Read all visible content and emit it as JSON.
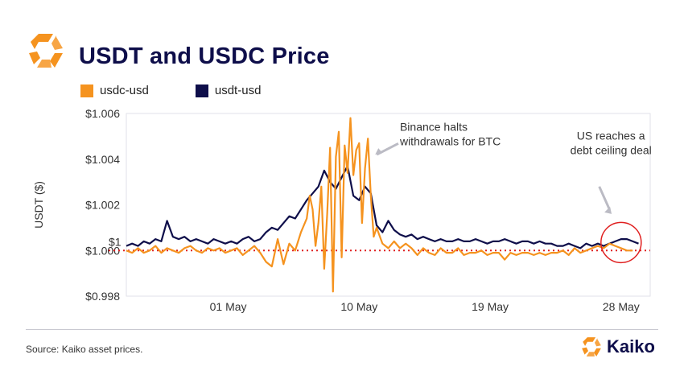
{
  "title": "USDT and USDC Price",
  "source": "Source: Kaiko asset prices.",
  "brand": "Kaiko",
  "colors": {
    "usdc": "#f5931f",
    "usdt": "#0e0e4a",
    "ref": "#e02020",
    "accent": "#f5931f"
  },
  "chart_data": {
    "type": "line",
    "title": "USDT and USDC Price",
    "ylabel": "USDT ($)",
    "xlabel": "",
    "ylim": [
      0.998,
      1.006
    ],
    "xlim": [
      -3,
      33
    ],
    "y_ticks": [
      {
        "value": 1.006,
        "label": "$1.006"
      },
      {
        "value": 1.004,
        "label": "$1.004"
      },
      {
        "value": 1.002,
        "label": "$1.002"
      },
      {
        "value": 1.0,
        "label": "$1.000"
      },
      {
        "value": 0.998,
        "label": "$0.998"
      }
    ],
    "x_ticks": [
      {
        "day": 4,
        "label": "01 May"
      },
      {
        "day": 13,
        "label": "10 May"
      },
      {
        "day": 22,
        "label": "19 May"
      },
      {
        "day": 31,
        "label": "28 May"
      }
    ],
    "reference_line": {
      "value": 1.0,
      "label": "$1"
    },
    "legend": [
      "usdc-usd",
      "usdt-usd"
    ],
    "annotations": [
      {
        "text": [
          "Binance halts",
          "withdrawals for BTC"
        ],
        "x": 15.8,
        "y": 1.00525
      },
      {
        "text": [
          "US reaches a",
          "debt ceiling deal"
        ],
        "x": 30.3,
        "y": 1.00485
      }
    ],
    "series": [
      {
        "name": "usdt-usd",
        "x": [
          -3.0,
          -2.6,
          -2.2,
          -1.8,
          -1.4,
          -1.0,
          -0.6,
          -0.2,
          0.2,
          0.6,
          1.0,
          1.4,
          1.8,
          2.2,
          2.6,
          3.0,
          3.4,
          3.8,
          4.2,
          4.6,
          5.0,
          5.4,
          5.8,
          6.2,
          6.6,
          7.0,
          7.4,
          7.8,
          8.2,
          8.6,
          9.0,
          9.4,
          9.8,
          10.2,
          10.6,
          11.0,
          11.4,
          11.8,
          12.2,
          12.6,
          13.0,
          13.4,
          13.8,
          14.2,
          14.6,
          15.0,
          15.4,
          15.8,
          16.2,
          16.6,
          17.0,
          17.4,
          17.8,
          18.2,
          18.6,
          19.0,
          19.4,
          19.8,
          20.2,
          20.6,
          21.0,
          21.4,
          21.8,
          22.2,
          22.6,
          23.0,
          23.4,
          23.8,
          24.2,
          24.6,
          25.0,
          25.4,
          25.8,
          26.2,
          26.6,
          27.0,
          27.4,
          27.8,
          28.2,
          28.6,
          29.0,
          29.4,
          29.8,
          30.2,
          30.6,
          31.0,
          31.4,
          31.8,
          32.2
        ],
        "values": [
          1.0002,
          1.0003,
          1.0002,
          1.0004,
          1.0003,
          1.0005,
          1.0004,
          1.0013,
          1.0006,
          1.0005,
          1.0006,
          1.0004,
          1.0005,
          1.0004,
          1.0003,
          1.0005,
          1.0004,
          1.0003,
          1.0004,
          1.0003,
          1.0005,
          1.0006,
          1.0004,
          1.0005,
          1.0008,
          1.001,
          1.0009,
          1.0012,
          1.0015,
          1.0014,
          1.0018,
          1.0022,
          1.0025,
          1.0028,
          1.0035,
          1.003,
          1.0027,
          1.0032,
          1.0037,
          1.0024,
          1.0022,
          1.0028,
          1.0025,
          1.0011,
          1.0008,
          1.0013,
          1.0009,
          1.0007,
          1.0006,
          1.0007,
          1.0005,
          1.0006,
          1.0005,
          1.0004,
          1.0005,
          1.0004,
          1.0004,
          1.0005,
          1.0004,
          1.0004,
          1.0005,
          1.0004,
          1.0003,
          1.0004,
          1.0004,
          1.0005,
          1.0004,
          1.0003,
          1.0004,
          1.0004,
          1.0003,
          1.0004,
          1.0003,
          1.0003,
          1.0002,
          1.0002,
          1.0003,
          1.0002,
          1.0001,
          1.0003,
          1.0002,
          1.0003,
          1.0002,
          1.0003,
          1.0004,
          1.0005,
          1.0005,
          1.0004,
          1.0003
        ]
      },
      {
        "name": "usdc-usd",
        "x": [
          -3.0,
          -2.6,
          -2.2,
          -1.8,
          -1.4,
          -1.0,
          -0.6,
          -0.2,
          0.2,
          0.6,
          1.0,
          1.4,
          1.8,
          2.2,
          2.6,
          3.0,
          3.4,
          3.8,
          4.2,
          4.6,
          5.0,
          5.4,
          5.8,
          6.2,
          6.6,
          7.0,
          7.4,
          7.8,
          8.2,
          8.6,
          9.0,
          9.4,
          9.6,
          9.8,
          10.0,
          10.2,
          10.4,
          10.6,
          10.8,
          11.0,
          11.2,
          11.4,
          11.6,
          11.8,
          12.0,
          12.2,
          12.4,
          12.6,
          12.8,
          13.0,
          13.2,
          13.4,
          13.6,
          13.8,
          14.0,
          14.2,
          14.6,
          15.0,
          15.4,
          15.8,
          16.2,
          16.6,
          17.0,
          17.4,
          17.8,
          18.2,
          18.6,
          19.0,
          19.4,
          19.8,
          20.2,
          20.6,
          21.0,
          21.4,
          21.8,
          22.2,
          22.6,
          23.0,
          23.4,
          23.8,
          24.2,
          24.6,
          25.0,
          25.4,
          25.8,
          26.2,
          26.6,
          27.0,
          27.4,
          27.8,
          28.2,
          28.6,
          29.0,
          29.4,
          29.8,
          30.2,
          30.6,
          31.0,
          31.4,
          31.8
        ],
        "values": [
          1.0,
          0.9999,
          1.0001,
          0.9999,
          1.0,
          1.0002,
          0.9999,
          1.0001,
          1.0,
          0.9999,
          1.0001,
          1.0002,
          1.0,
          0.9999,
          1.0001,
          1.0,
          1.0001,
          0.9999,
          1.0,
          1.0001,
          0.9998,
          1.0,
          1.0002,
          0.9999,
          0.9995,
          0.9993,
          1.0005,
          0.9994,
          1.0003,
          1.0,
          1.0008,
          1.0014,
          1.0024,
          1.0018,
          1.0002,
          1.0012,
          1.0028,
          0.9992,
          1.0016,
          1.0045,
          0.9982,
          1.0041,
          1.0052,
          0.9997,
          1.0046,
          1.0034,
          1.0058,
          1.0033,
          1.0044,
          1.0047,
          1.0012,
          1.0036,
          1.0049,
          1.0024,
          1.0006,
          1.001,
          1.0003,
          1.0001,
          1.0004,
          1.0001,
          1.0003,
          1.0001,
          0.9998,
          1.0001,
          0.9999,
          0.9998,
          1.0001,
          0.9999,
          0.9999,
          1.0001,
          0.9998,
          0.9999,
          0.9999,
          1.0,
          0.9998,
          0.9999,
          0.9999,
          0.9996,
          0.9999,
          0.9998,
          0.9999,
          0.9999,
          0.9998,
          0.9999,
          0.9998,
          0.9999,
          0.9999,
          1.0,
          0.9998,
          1.0001,
          0.9999,
          1.0,
          1.0001,
          1.0002,
          1.0001,
          1.0003,
          1.0002,
          1.0001,
          1.0,
          1.0
        ]
      }
    ]
  }
}
